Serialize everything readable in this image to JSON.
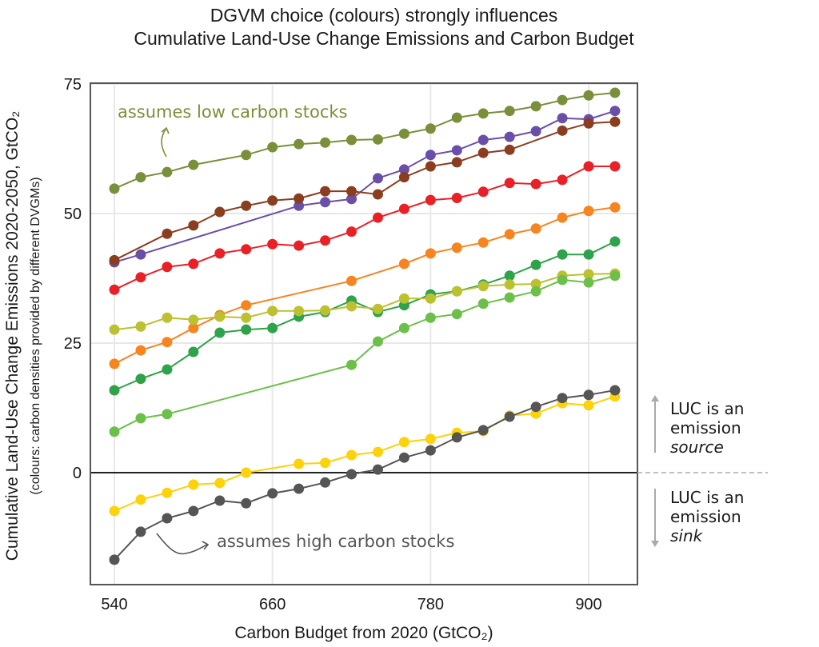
{
  "chart_data": {
    "type": "line",
    "title": "DGVM choice (colours) strongly influences",
    "subtitle": "Cumulative Land-Use Change Emissions and Carbon Budget",
    "xlabel": "Carbon Budget from 2020 (GtCO₂)",
    "ylabel": "Cumulative Land-Use Change Emissions 2020-2050, GtCO₂",
    "ylabel_sub": "(colours: carbon densities provided by different DVGMs)",
    "xlim": [
      522,
      935
    ],
    "ylim": [
      -20,
      75
    ],
    "xticks": [
      540,
      660,
      780,
      900
    ],
    "xtick_labels": [
      "540",
      "660",
      "780",
      "900"
    ],
    "yticks": [
      0,
      25,
      50,
      75
    ],
    "ytick_labels": [
      "0",
      "25",
      "50",
      "75"
    ],
    "grid": true,
    "zero_line": true,
    "annotations": [
      {
        "text": "assumes low carbon stocks",
        "color": "#7a8f3a",
        "series": "olive"
      },
      {
        "text": "assumes high carbon stocks",
        "color": "#555555",
        "series": "gray"
      }
    ],
    "side_labels": {
      "source": {
        "line1": "LUC is an",
        "line2": "emission",
        "line3": "source"
      },
      "sink": {
        "line1": "LUC is an",
        "line2": "emission",
        "line3": "sink"
      }
    },
    "series": [
      {
        "name": "olive",
        "color": "#7a8f3a",
        "x": [
          540,
          560,
          580,
          600,
          640,
          660,
          680,
          700,
          720,
          740,
          760,
          780,
          800,
          820,
          840,
          860,
          880,
          900,
          920
        ],
        "y": [
          54.8,
          57.0,
          58.0,
          59.4,
          61.3,
          62.8,
          63.4,
          63.7,
          64.2,
          64.3,
          65.4,
          66.4,
          68.5,
          69.3,
          69.8,
          70.7,
          71.9,
          72.8,
          73.3
        ]
      },
      {
        "name": "purple",
        "color": "#6a4fa8",
        "x": [
          540,
          560,
          680,
          700,
          720,
          740,
          760,
          780,
          800,
          820,
          840,
          860,
          880,
          900,
          920
        ],
        "y": [
          40.6,
          42.1,
          51.5,
          52.2,
          52.8,
          56.8,
          58.5,
          61.3,
          62.2,
          64.2,
          64.8,
          65.9,
          68.4,
          68.2,
          69.8
        ]
      },
      {
        "name": "brown",
        "color": "#8b3e1f",
        "x": [
          540,
          580,
          600,
          620,
          640,
          660,
          680,
          700,
          720,
          740,
          760,
          780,
          800,
          820,
          840,
          880,
          900,
          920
        ],
        "y": [
          41.0,
          46.1,
          47.7,
          50.3,
          51.5,
          52.5,
          52.9,
          54.3,
          54.3,
          53.7,
          57.0,
          59.1,
          59.9,
          61.7,
          62.3,
          66.0,
          67.4,
          67.7
        ]
      },
      {
        "name": "red",
        "color": "#ea2027",
        "x": [
          540,
          560,
          580,
          600,
          620,
          640,
          660,
          680,
          700,
          720,
          740,
          760,
          780,
          800,
          820,
          840,
          860,
          880,
          900,
          920
        ],
        "y": [
          35.3,
          37.7,
          39.7,
          40.3,
          42.3,
          43.1,
          44.1,
          43.8,
          44.8,
          46.5,
          49.2,
          50.9,
          52.6,
          53.0,
          54.2,
          55.9,
          55.7,
          56.5,
          59.1,
          59.1
        ]
      },
      {
        "name": "orange",
        "color": "#f7841f",
        "x": [
          540,
          560,
          580,
          600,
          620,
          640,
          720,
          760,
          780,
          800,
          820,
          840,
          860,
          880,
          900,
          920
        ],
        "y": [
          21.0,
          23.6,
          25.2,
          27.9,
          30.4,
          32.3,
          37.0,
          40.3,
          42.3,
          43.4,
          44.4,
          46.0,
          47.1,
          49.2,
          50.5,
          51.2
        ]
      },
      {
        "name": "dark-green",
        "color": "#2ea34a",
        "x": [
          540,
          560,
          580,
          600,
          620,
          640,
          660,
          680,
          700,
          720,
          740,
          760,
          780,
          800,
          820,
          840,
          860,
          880,
          900,
          920
        ],
        "y": [
          15.9,
          18.1,
          19.9,
          23.3,
          27.0,
          27.6,
          27.9,
          30.1,
          31.0,
          33.2,
          31.0,
          32.3,
          34.4,
          35.0,
          36.3,
          38.0,
          40.1,
          42.1,
          42.1,
          44.6
        ]
      },
      {
        "name": "yellow-green",
        "color": "#bcc130",
        "x": [
          540,
          560,
          580,
          600,
          620,
          640,
          660,
          680,
          700,
          720,
          740,
          760,
          780,
          800,
          820,
          840,
          860,
          880,
          900,
          920
        ],
        "y": [
          27.6,
          28.2,
          29.9,
          29.5,
          30.1,
          29.9,
          31.2,
          31.2,
          31.3,
          32.1,
          31.6,
          33.6,
          33.6,
          35.0,
          36.0,
          36.3,
          36.4,
          38.0,
          38.3,
          38.4
        ]
      },
      {
        "name": "light-green",
        "color": "#6cc04a",
        "x": [
          540,
          560,
          580,
          720,
          740,
          760,
          780,
          800,
          820,
          840,
          860,
          880,
          900,
          920
        ],
        "y": [
          7.9,
          10.5,
          11.3,
          20.8,
          25.3,
          27.9,
          29.9,
          30.6,
          32.6,
          33.8,
          35.0,
          37.2,
          36.7,
          38.0
        ]
      },
      {
        "name": "yellow",
        "color": "#fcd20a",
        "x": [
          540,
          560,
          580,
          600,
          620,
          640,
          680,
          700,
          720,
          740,
          760,
          780,
          800,
          820,
          840,
          860,
          880,
          900,
          920
        ],
        "y": [
          -7.4,
          -5.2,
          -3.9,
          -2.3,
          -2.0,
          0.0,
          1.7,
          1.9,
          3.4,
          4.0,
          5.9,
          6.5,
          7.7,
          8.0,
          11.0,
          11.4,
          13.4,
          13.0,
          14.7
        ]
      },
      {
        "name": "gray",
        "color": "#555555",
        "x": [
          540,
          560,
          580,
          600,
          620,
          640,
          660,
          680,
          700,
          720,
          740,
          760,
          780,
          800,
          820,
          840,
          860,
          880,
          900,
          920
        ],
        "y": [
          -16.8,
          -11.4,
          -8.8,
          -7.4,
          -5.4,
          -5.9,
          -4.0,
          -3.1,
          -1.9,
          -0.3,
          0.6,
          2.9,
          4.3,
          6.8,
          8.2,
          10.8,
          12.7,
          14.4,
          15.0,
          15.9
        ]
      }
    ]
  }
}
